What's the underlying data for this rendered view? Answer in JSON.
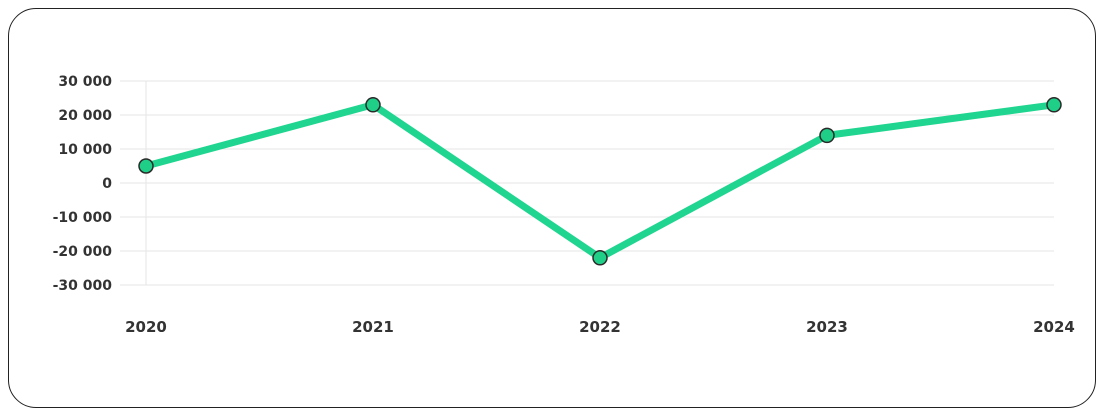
{
  "chart_data": {
    "type": "line",
    "title": "",
    "xlabel": "",
    "ylabel": "",
    "categories": [
      "2020",
      "2021",
      "2022",
      "2023",
      "2024"
    ],
    "series": [
      {
        "values": [
          5000,
          23000,
          -22000,
          14000,
          23000
        ]
      }
    ],
    "ylim": [
      -30000,
      30000
    ],
    "yticks": [
      30000,
      20000,
      10000,
      0,
      -10000,
      -20000,
      -30000
    ],
    "ytick_labels": [
      "30 000",
      "20 000",
      "10 000",
      "0",
      "-10 000",
      "-20 000",
      "-30 000"
    ],
    "grid": true,
    "legend": "none",
    "colors": {
      "line": "#1fd58f",
      "marker": "#1fcf88",
      "marker_edge": "#2a2a2a",
      "grid": "#e6e6e6"
    }
  }
}
